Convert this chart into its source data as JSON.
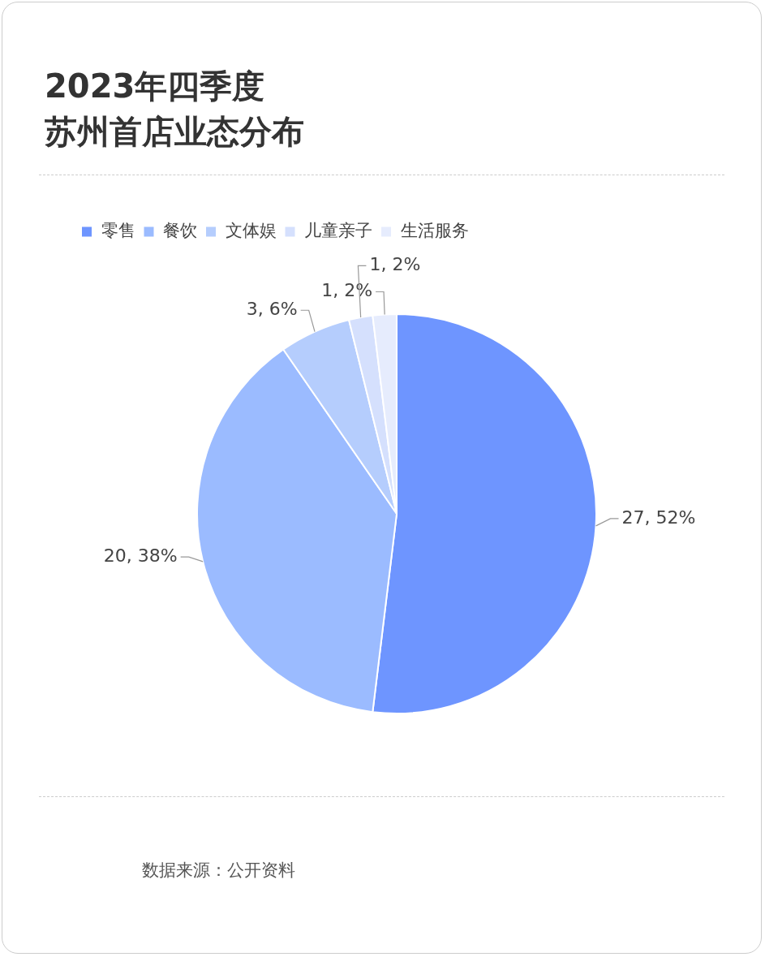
{
  "chart_data": {
    "type": "pie",
    "title": "2023年四季度",
    "subtitle": "苏州首店业态分布",
    "categories": [
      "零售",
      "餐饮",
      "文体娱",
      "儿童亲子",
      "生活服务"
    ],
    "values": [
      27,
      20,
      3,
      1,
      1
    ],
    "value_labels": [
      "27, 52%",
      "20, 38%",
      "3, 6%",
      "1, 2%",
      "1, 2%"
    ],
    "colors": [
      "#6e95ff",
      "#9bbbff",
      "#b5cdfd",
      "#d5e0fd",
      "#e6ecfd"
    ],
    "legend": "top",
    "annotations": [
      "数据来源：公开资料"
    ]
  }
}
